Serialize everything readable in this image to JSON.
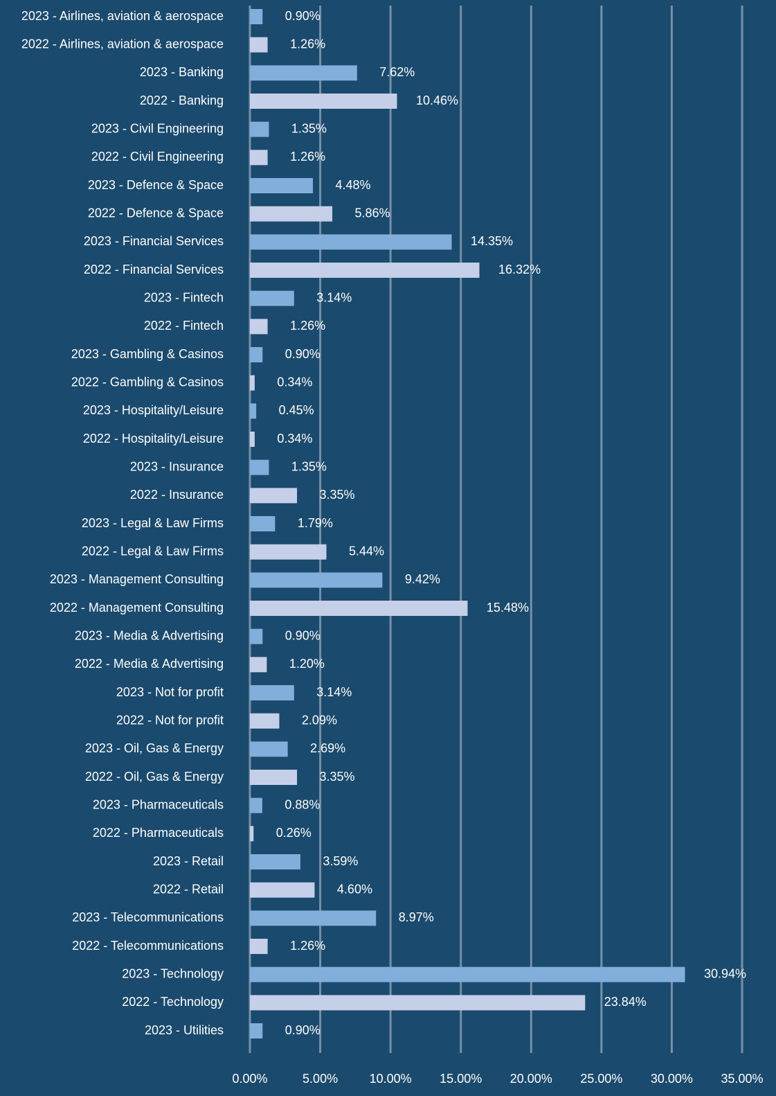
{
  "chart_data": {
    "type": "barh",
    "categories": [
      "2023 - Airlines, aviation & aerospace",
      "2022 - Airlines, aviation & aerospace",
      "2023 - Banking",
      "2022 - Banking",
      "2023 - Civil Engineering",
      "2022 - Civil Engineering",
      "2023 - Defence & Space",
      "2022 - Defence & Space",
      "2023 - Financial Services",
      "2022 - Financial Services",
      "2023 - Fintech",
      "2022 - Fintech",
      "2023 - Gambling & Casinos",
      "2022 - Gambling & Casinos",
      "2023 - Hospitality/Leisure",
      "2022 - Hospitality/Leisure",
      "2023 - Insurance",
      "2022 - Insurance",
      "2023 - Legal & Law Firms",
      "2022 - Legal & Law Firms",
      "2023 - Management Consulting",
      "2022 - Management Consulting",
      "2023 - Media & Advertising",
      "2022 - Media & Advertising",
      "2023 - Not for profit",
      "2022 - Not for profit",
      "2023 - Oil, Gas & Energy",
      "2022 - Oil, Gas & Energy",
      "2023 - Pharmaceuticals",
      "2022 - Pharmaceuticals",
      "2023 - Retail",
      "2022 - Retail",
      "2023 - Telecommunications",
      "2022 - Telecommunications",
      "2023 - Technology",
      "2022 - Technology",
      "2023 - Utilities"
    ],
    "values": [
      0.9,
      1.26,
      7.62,
      10.46,
      1.35,
      1.26,
      4.48,
      5.86,
      14.35,
      16.32,
      3.14,
      1.26,
      0.9,
      0.34,
      0.45,
      0.34,
      1.35,
      3.35,
      1.79,
      5.44,
      9.42,
      15.48,
      0.9,
      1.2,
      3.14,
      2.09,
      2.69,
      3.35,
      0.88,
      0.26,
      3.59,
      4.6,
      8.97,
      1.26,
      30.94,
      23.84,
      0.9
    ],
    "value_labels": [
      "0.90%",
      "1.26%",
      "7.62%",
      "10.46%",
      "1.35%",
      "1.26%",
      "4.48%",
      "5.86%",
      "14.35%",
      "16.32%",
      "3.14%",
      "1.26%",
      "0.90%",
      "0.34%",
      "0.45%",
      "0.34%",
      "1.35%",
      "3.35%",
      "1.79%",
      "5.44%",
      "9.42%",
      "15.48%",
      "0.90%",
      "1.20%",
      "3.14%",
      "2.09%",
      "2.69%",
      "3.35%",
      "0.88%",
      "0.26%",
      "3.59%",
      "4.60%",
      "8.97%",
      "1.26%",
      "30.94%",
      "23.84%",
      "0.90%"
    ],
    "colors": [
      "#82aedb",
      "#c5cfe8",
      "#82aedb",
      "#c5cfe8",
      "#82aedb",
      "#c5cfe8",
      "#82aedb",
      "#c5cfe8",
      "#82aedb",
      "#c5cfe8",
      "#82aedb",
      "#c5cfe8",
      "#82aedb",
      "#c5cfe8",
      "#82aedb",
      "#c5cfe8",
      "#82aedb",
      "#c5cfe8",
      "#82aedb",
      "#c5cfe8",
      "#82aedb",
      "#c5cfe8",
      "#82aedb",
      "#c5cfe8",
      "#82aedb",
      "#c5cfe8",
      "#82aedb",
      "#c5cfe8",
      "#82aedb",
      "#c5cfe8",
      "#82aedb",
      "#c5cfe8",
      "#82aedb",
      "#c5cfe8",
      "#82aedb",
      "#c5cfe8",
      "#82aedb"
    ],
    "xlim": [
      0,
      35
    ],
    "xticks": [
      {
        "value": 0,
        "label": "0.00%"
      },
      {
        "value": 5,
        "label": "5.00%"
      },
      {
        "value": 10,
        "label": "10.00%"
      },
      {
        "value": 15,
        "label": "15.00%"
      },
      {
        "value": 20,
        "label": "20.00%"
      },
      {
        "value": 25,
        "label": "25.00%"
      },
      {
        "value": 30,
        "label": "30.00%"
      },
      {
        "value": 35,
        "label": "35.00%"
      }
    ],
    "grid": true
  }
}
